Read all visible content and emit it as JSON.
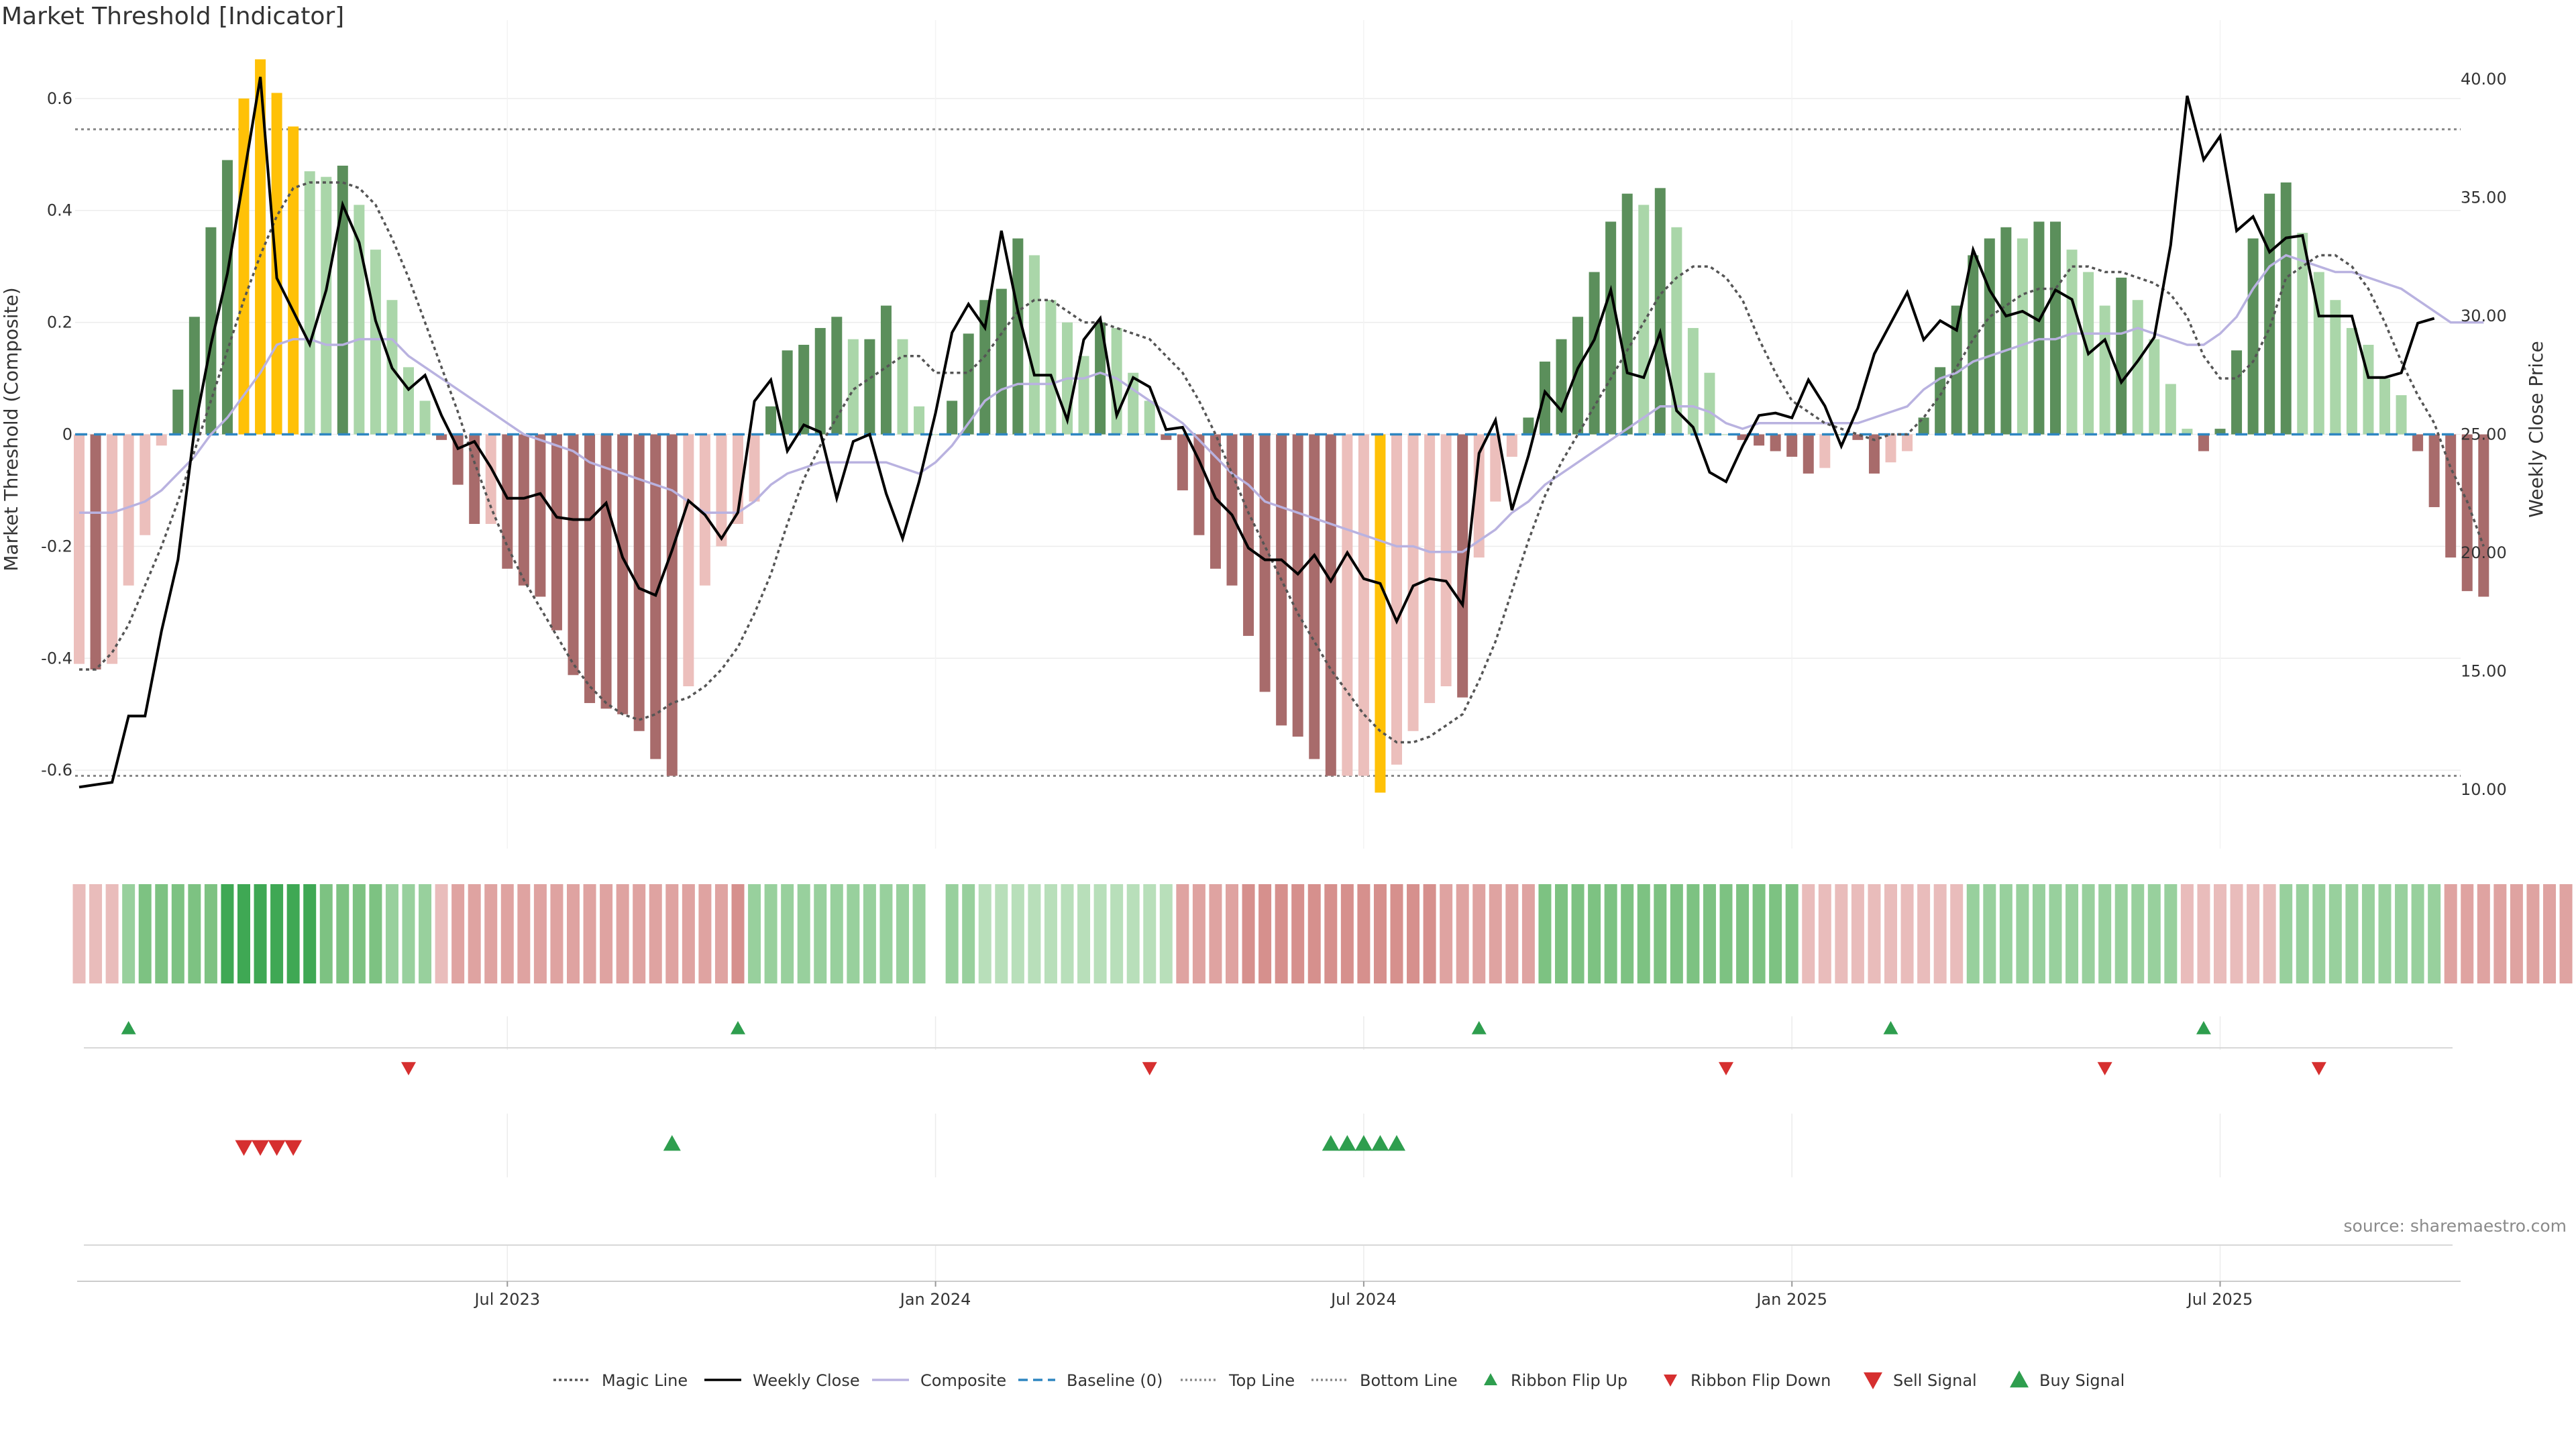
{
  "chart_data": {
    "type": "bar",
    "title": "Market Threshold [Indicator]",
    "ylabel_left": "Market Threshold (Composite)",
    "ylabel_right": "Weekly Close Price",
    "ylim_left": [
      -0.74,
      0.74
    ],
    "ylim_right": [
      7.5,
      42.5
    ],
    "yticks_left": [
      -0.6,
      -0.4,
      -0.2,
      0,
      0.2,
      0.4,
      0.6
    ],
    "yticks_left_labels": [
      "-0.6",
      "-0.4",
      "-0.2",
      "0",
      "0.2",
      "0.4",
      "0.6"
    ],
    "yticks_right": [
      10,
      15,
      20,
      25,
      30,
      35,
      40
    ],
    "yticks_right_labels": [
      "10.00",
      "15.00",
      "20.00",
      "25.00",
      "30.00",
      "35.00",
      "40.00"
    ],
    "x_start": "2023-01-02",
    "x_ticks": [
      {
        "week": 26,
        "label": "Jul 2023"
      },
      {
        "week": 52,
        "label": "Jan 2024"
      },
      {
        "week": 78,
        "label": "Jul 2024"
      },
      {
        "week": 104,
        "label": "Jan 2025"
      },
      {
        "week": 130,
        "label": "Jul 2025"
      }
    ],
    "top_line": 0.545,
    "bottom_line": -0.61,
    "baseline": 0,
    "composite_bars": [
      -0.41,
      -0.42,
      -0.41,
      -0.27,
      -0.18,
      -0.02,
      0.08,
      0.21,
      0.37,
      0.49,
      0.6,
      0.67,
      0.61,
      0.55,
      0.47,
      0.46,
      0.48,
      0.41,
      0.33,
      0.24,
      0.12,
      0.06,
      -0.01,
      -0.09,
      -0.16,
      -0.16,
      -0.24,
      -0.27,
      -0.29,
      -0.35,
      -0.43,
      -0.48,
      -0.49,
      -0.5,
      -0.53,
      -0.58,
      -0.61,
      -0.45,
      -0.27,
      -0.2,
      -0.16,
      -0.12,
      0.05,
      0.15,
      0.16,
      0.19,
      0.21,
      0.17,
      0.17,
      0.23,
      0.17,
      0.05,
      0,
      0.06,
      0.18,
      0.24,
      0.26,
      0.35,
      0.32,
      0.24,
      0.2,
      0.14,
      0.2,
      0.19,
      0.11,
      0.06,
      -0.01,
      -0.1,
      -0.18,
      -0.24,
      -0.27,
      -0.36,
      -0.46,
      -0.52,
      -0.54,
      -0.58,
      -0.61,
      -0.61,
      -0.61,
      -0.64,
      -0.59,
      -0.53,
      -0.48,
      -0.45,
      -0.47,
      -0.22,
      -0.12,
      -0.04,
      0.03,
      0.13,
      0.17,
      0.21,
      0.29,
      0.38,
      0.43,
      0.41,
      0.44,
      0.37,
      0.19,
      0.11,
      0,
      -0.01,
      -0.02,
      -0.03,
      -0.04,
      -0.07,
      -0.06,
      0,
      -0.01,
      -0.07,
      -0.05,
      -0.03,
      0.03,
      0.12,
      0.23,
      0.32,
      0.35,
      0.37,
      0.35,
      0.38,
      0.38,
      0.33,
      0.29,
      0.23,
      0.28,
      0.24,
      0.17,
      0.09,
      0.01,
      -0.03,
      0.01,
      0.15,
      0.35,
      0.43,
      0.45,
      0.36,
      0.29,
      0.24,
      0.19,
      0.16,
      0.1,
      0.07,
      -0.03,
      -0.13,
      -0.22,
      -0.28,
      -0.29
    ],
    "weekly_close": [
      10.1,
      10.2,
      10.3,
      13.1,
      13.1,
      16.7,
      19.7,
      25.2,
      28.8,
      31.8,
      35.9,
      40.1,
      31.6,
      30.2,
      28.8,
      31.1,
      34.7,
      33.1,
      29.8,
      27.8,
      26.9,
      27.5,
      25.8,
      24.4,
      24.7,
      23.6,
      22.3,
      22.3,
      22.5,
      21.5,
      21.4,
      21.4,
      22.1,
      19.8,
      18.5,
      18.2,
      20.1,
      22.2,
      21.6,
      20.6,
      21.7,
      26.4,
      27.3,
      24.3,
      25.4,
      25.1,
      22.3,
      24.7,
      25.0,
      22.5,
      20.6,
      23.0,
      25.9,
      29.3,
      30.5,
      29.5,
      33.6,
      30.2,
      27.5,
      27.5,
      25.6,
      29.0,
      29.9,
      25.8,
      27.4,
      27.0,
      25.2,
      25.3,
      23.9,
      22.3,
      21.6,
      20.2,
      19.7,
      19.7,
      19.1,
      19.9,
      18.8,
      20.0,
      18.9,
      18.7,
      17.1,
      18.6,
      18.9,
      18.8,
      17.8,
      24.2,
      25.6,
      21.8,
      24.1,
      26.8,
      26.0,
      27.8,
      29.0,
      31.1,
      27.6,
      27.4,
      29.3,
      26.0,
      25.3,
      23.4,
      23.0,
      24.5,
      25.8,
      25.9,
      25.7,
      27.3,
      26.2,
      24.5,
      26.1,
      28.4,
      29.7,
      31.0,
      29.0,
      29.8,
      29.4,
      32.8,
      31.1,
      30.0,
      30.2,
      29.8,
      31.1,
      30.7,
      28.4,
      29.0,
      27.2,
      28.1,
      29.1,
      33.0,
      39.3,
      36.6,
      37.6,
      33.6,
      34.2,
      32.7,
      33.3,
      33.4,
      30.0,
      30.0,
      30.0,
      27.4,
      27.4,
      27.6,
      29.7,
      29.9
    ],
    "composite_line": [
      -0.14,
      -0.14,
      -0.14,
      -0.13,
      -0.12,
      -0.1,
      -0.07,
      -0.04,
      0,
      0.03,
      0.07,
      0.11,
      0.16,
      0.17,
      0.17,
      0.16,
      0.16,
      0.17,
      0.17,
      0.17,
      0.14,
      0.12,
      0.1,
      0.08,
      0.06,
      0.04,
      0.02,
      0,
      -0.01,
      -0.02,
      -0.03,
      -0.05,
      -0.06,
      -0.07,
      -0.08,
      -0.09,
      -0.1,
      -0.12,
      -0.14,
      -0.14,
      -0.14,
      -0.12,
      -0.09,
      -0.07,
      -0.06,
      -0.05,
      -0.05,
      -0.05,
      -0.05,
      -0.05,
      -0.06,
      -0.07,
      -0.05,
      -0.02,
      0.02,
      0.06,
      0.08,
      0.09,
      0.09,
      0.09,
      0.1,
      0.1,
      0.11,
      0.1,
      0.08,
      0.06,
      0.04,
      0.02,
      -0.01,
      -0.04,
      -0.07,
      -0.09,
      -0.12,
      -0.13,
      -0.14,
      -0.15,
      -0.16,
      -0.17,
      -0.18,
      -0.19,
      -0.2,
      -0.2,
      -0.21,
      -0.21,
      -0.21,
      -0.19,
      -0.17,
      -0.14,
      -0.12,
      -0.09,
      -0.07,
      -0.05,
      -0.03,
      -0.01,
      0.01,
      0.03,
      0.05,
      0.05,
      0.05,
      0.04,
      0.02,
      0.01,
      0.02,
      0.02,
      0.02,
      0.02,
      0.02,
      0.02,
      0.02,
      0.03,
      0.04,
      0.05,
      0.08,
      0.1,
      0.11,
      0.13,
      0.14,
      0.15,
      0.16,
      0.17,
      0.17,
      0.18,
      0.18,
      0.18,
      0.18,
      0.19,
      0.18,
      0.17,
      0.16,
      0.16,
      0.18,
      0.21,
      0.26,
      0.3,
      0.32,
      0.31,
      0.3,
      0.29,
      0.29,
      0.28,
      0.27,
      0.26,
      0.24,
      0.22,
      0.2,
      0.2,
      0.2
    ],
    "magic_line": [
      -0.42,
      -0.42,
      -0.39,
      -0.34,
      -0.27,
      -0.2,
      -0.12,
      -0.03,
      0.06,
      0.15,
      0.24,
      0.32,
      0.39,
      0.44,
      0.45,
      0.45,
      0.45,
      0.44,
      0.41,
      0.35,
      0.28,
      0.2,
      0.12,
      0.04,
      -0.05,
      -0.13,
      -0.2,
      -0.26,
      -0.31,
      -0.36,
      -0.41,
      -0.45,
      -0.48,
      -0.5,
      -0.51,
      -0.5,
      -0.48,
      -0.47,
      -0.45,
      -0.42,
      -0.38,
      -0.32,
      -0.25,
      -0.16,
      -0.08,
      -0.02,
      0.03,
      0.08,
      0.1,
      0.12,
      0.14,
      0.14,
      0.11,
      0.11,
      0.11,
      0.14,
      0.18,
      0.22,
      0.24,
      0.24,
      0.22,
      0.2,
      0.2,
      0.19,
      0.18,
      0.17,
      0.14,
      0.11,
      0.06,
      0,
      -0.07,
      -0.14,
      -0.2,
      -0.26,
      -0.32,
      -0.37,
      -0.42,
      -0.46,
      -0.5,
      -0.53,
      -0.55,
      -0.55,
      -0.54,
      -0.52,
      -0.5,
      -0.44,
      -0.37,
      -0.28,
      -0.19,
      -0.11,
      -0.05,
      0,
      0.05,
      0.1,
      0.15,
      0.2,
      0.25,
      0.28,
      0.3,
      0.3,
      0.28,
      0.24,
      0.17,
      0.11,
      0.06,
      0.04,
      0.02,
      0.01,
      0,
      -0.01,
      0,
      0,
      0.03,
      0.07,
      0.12,
      0.17,
      0.21,
      0.23,
      0.25,
      0.26,
      0.26,
      0.3,
      0.3,
      0.29,
      0.29,
      0.28,
      0.27,
      0.25,
      0.21,
      0.14,
      0.1,
      0.1,
      0.13,
      0.19,
      0.28,
      0.3,
      0.32,
      0.32,
      0.3,
      0.26,
      0.2,
      0.13,
      0.07,
      0.02,
      -0.06,
      -0.12,
      -0.2
    ],
    "ribbon_levels": [
      -1,
      -1,
      -1,
      1,
      2,
      2,
      2,
      2,
      2,
      3,
      3,
      3,
      3,
      3,
      3,
      2,
      2,
      2,
      2,
      1,
      1,
      1,
      -1,
      -2,
      -2,
      -2,
      -2,
      -2,
      -2,
      -2,
      -2,
      -2,
      -2,
      -2,
      -2,
      -2,
      -2,
      -2,
      -2,
      -2,
      -3,
      1,
      1,
      1,
      1,
      1,
      1,
      1,
      1,
      1,
      1,
      1,
      null,
      1,
      1,
      0,
      0,
      0,
      0,
      0,
      0,
      0,
      0,
      0,
      0,
      0,
      0,
      -2,
      -2,
      -2,
      -2,
      -3,
      -3,
      -3,
      -3,
      -3,
      -3,
      -3,
      -3,
      -3,
      -3,
      -3,
      -3,
      -2,
      -2,
      -2,
      -2,
      -2,
      -2,
      2,
      2,
      2,
      2,
      2,
      2,
      2,
      2,
      2,
      2,
      2,
      2,
      2,
      2,
      2,
      2,
      -1,
      -1,
      -1,
      -1,
      -1,
      -1,
      -1,
      -1,
      -1,
      -1,
      1,
      1,
      1,
      1,
      1,
      1,
      1,
      1,
      1,
      1,
      1,
      1,
      1,
      -1,
      -1,
      -1,
      -1,
      -1,
      -1,
      1,
      1,
      1,
      1,
      1,
      1,
      1,
      1,
      1,
      1,
      -2,
      -2,
      -2,
      -2,
      -2,
      -2,
      -2,
      -2,
      -2,
      -2
    ],
    "ribbon_flip_up": [
      3,
      40,
      85,
      110,
      129
    ],
    "ribbon_flip_down": [
      20,
      65,
      100,
      123,
      136
    ],
    "sell_signals": [
      10,
      11,
      12,
      13
    ],
    "buy_signals": [
      36,
      76,
      77,
      78,
      79,
      80
    ],
    "legend": [
      "Magic Line",
      "Weekly Close",
      "Composite",
      "Baseline (0)",
      "Top Line",
      "Bottom Line",
      "Ribbon Flip Up",
      "Ribbon Flip Down",
      "Sell Signal",
      "Buy Signal"
    ],
    "source_note": "source: sharemaestro.com",
    "colors": {
      "pos_strong": "#5b8f5b",
      "pos_weak": "#aad6a9",
      "neg_strong": "#a86b6b",
      "neg_weak": "#ecbfbc",
      "extreme": "#ffc107",
      "close_line": "#000000",
      "composite_line": "#b9b2e0",
      "magic_line": "#555555",
      "baseline": "#2e86c1",
      "threshold_lines": "#888888",
      "ribbon_green": [
        "#d3ebd3",
        "#b8dfba",
        "#98d09d",
        "#7dc282",
        "#3fa854"
      ],
      "ribbon_red": [
        "#f3d6d5",
        "#e9bcbb",
        "#dfa3a1",
        "#d6908d"
      ],
      "flip_up": "#2e9e4e",
      "flip_down": "#d62f2f"
    }
  }
}
